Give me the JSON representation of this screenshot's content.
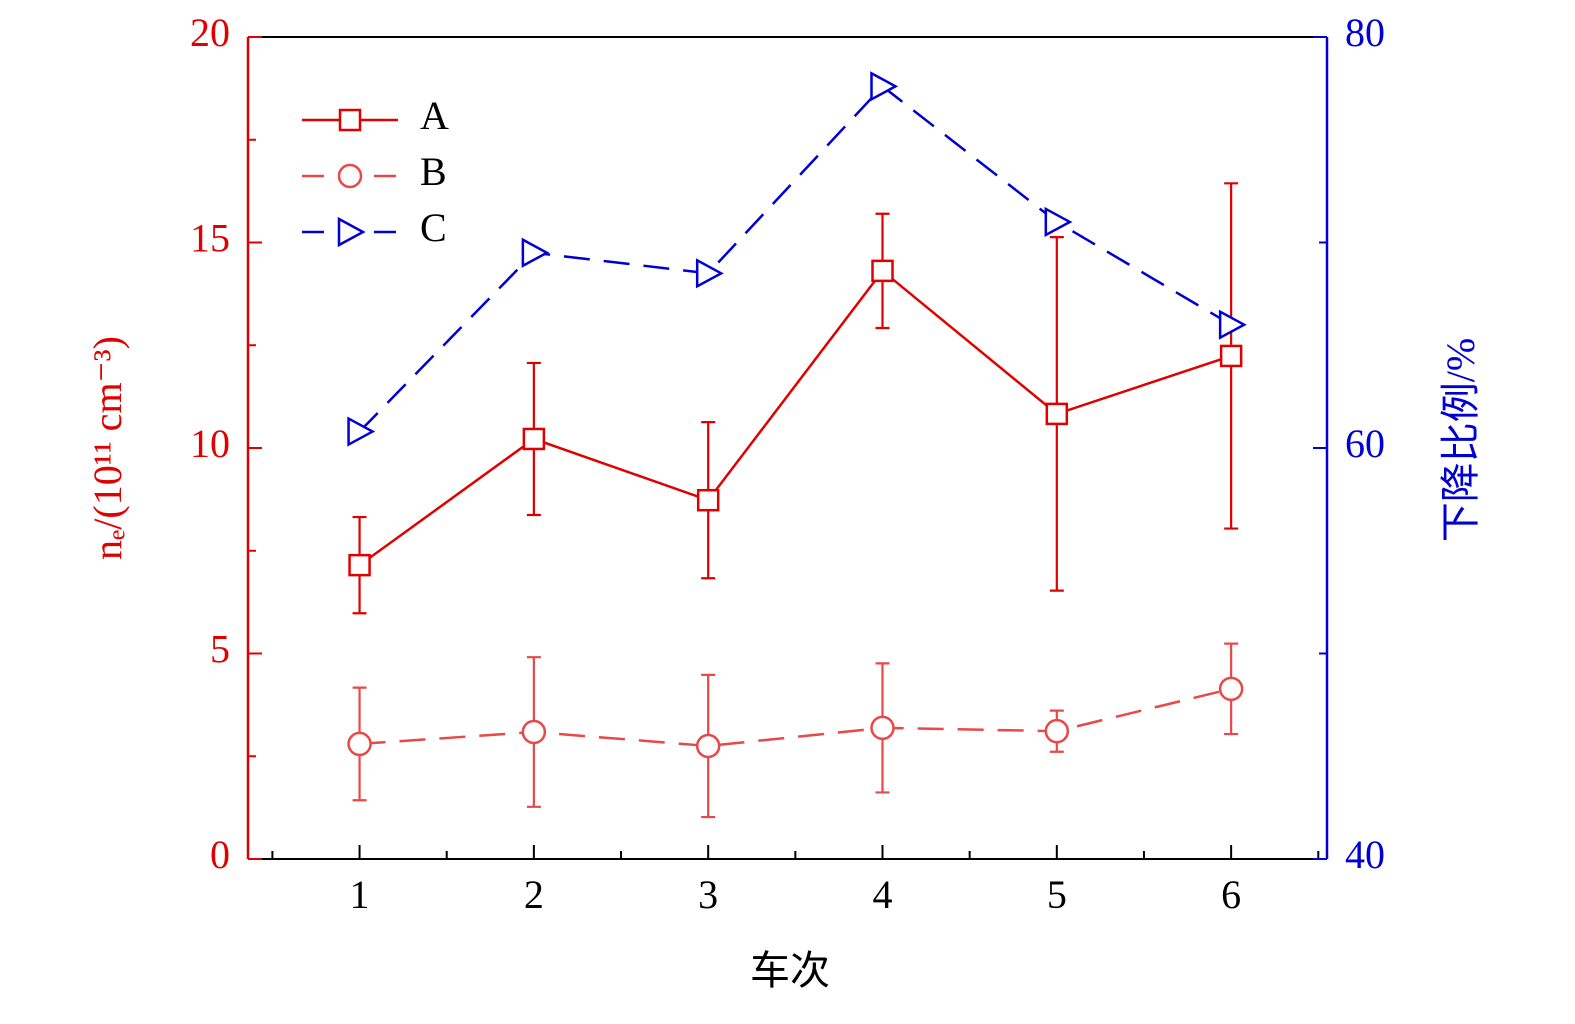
{
  "chart_data": {
    "type": "line",
    "x_label": "车次",
    "y_label": "nₑ/(10¹¹ cm⁻³)",
    "y2_label": "下降比例/%",
    "x": [
      1,
      2,
      3,
      4,
      5,
      6
    ],
    "xlim": [
      0.36,
      6.55
    ],
    "xticks": [
      1,
      2,
      3,
      4,
      5,
      6
    ],
    "xminorticks": [
      0.5,
      1.5,
      2.5,
      3.5,
      4.5,
      5.5,
      6.5
    ],
    "ylim": [
      0,
      20
    ],
    "yticks": [
      0,
      5,
      10,
      15,
      20
    ],
    "yminorticks": [
      2.5,
      7.5,
      12.5,
      17.5
    ],
    "y2lim": [
      40,
      80
    ],
    "y2ticks": [
      40,
      60,
      80
    ],
    "y2minorticks": [
      50,
      70
    ],
    "y_color": "#e00000",
    "y2_color": "#0000d0",
    "legend": "upper left",
    "series": [
      {
        "name": "A",
        "color": "#e00000",
        "linestyle": "solid",
        "marker": "square",
        "values": [
          7.15,
          10.22,
          8.73,
          14.31,
          10.83,
          12.24
        ],
        "errors": [
          1.17,
          1.85,
          1.9,
          1.39,
          4.3,
          4.2
        ]
      },
      {
        "name": "B",
        "color": "#e84848",
        "linestyle": "dashed",
        "marker": "circle",
        "values": [
          2.8,
          3.09,
          2.75,
          3.19,
          3.11,
          4.14
        ],
        "errors": [
          1.37,
          1.82,
          1.73,
          1.57,
          0.5,
          1.1
        ]
      },
      {
        "name": "C",
        "color": "#0000d0",
        "linestyle": "dashed",
        "marker": "triangle-right",
        "axis": "y2",
        "values": [
          60.8,
          69.5,
          68.5,
          77.6,
          71.0,
          66.0
        ]
      }
    ]
  }
}
